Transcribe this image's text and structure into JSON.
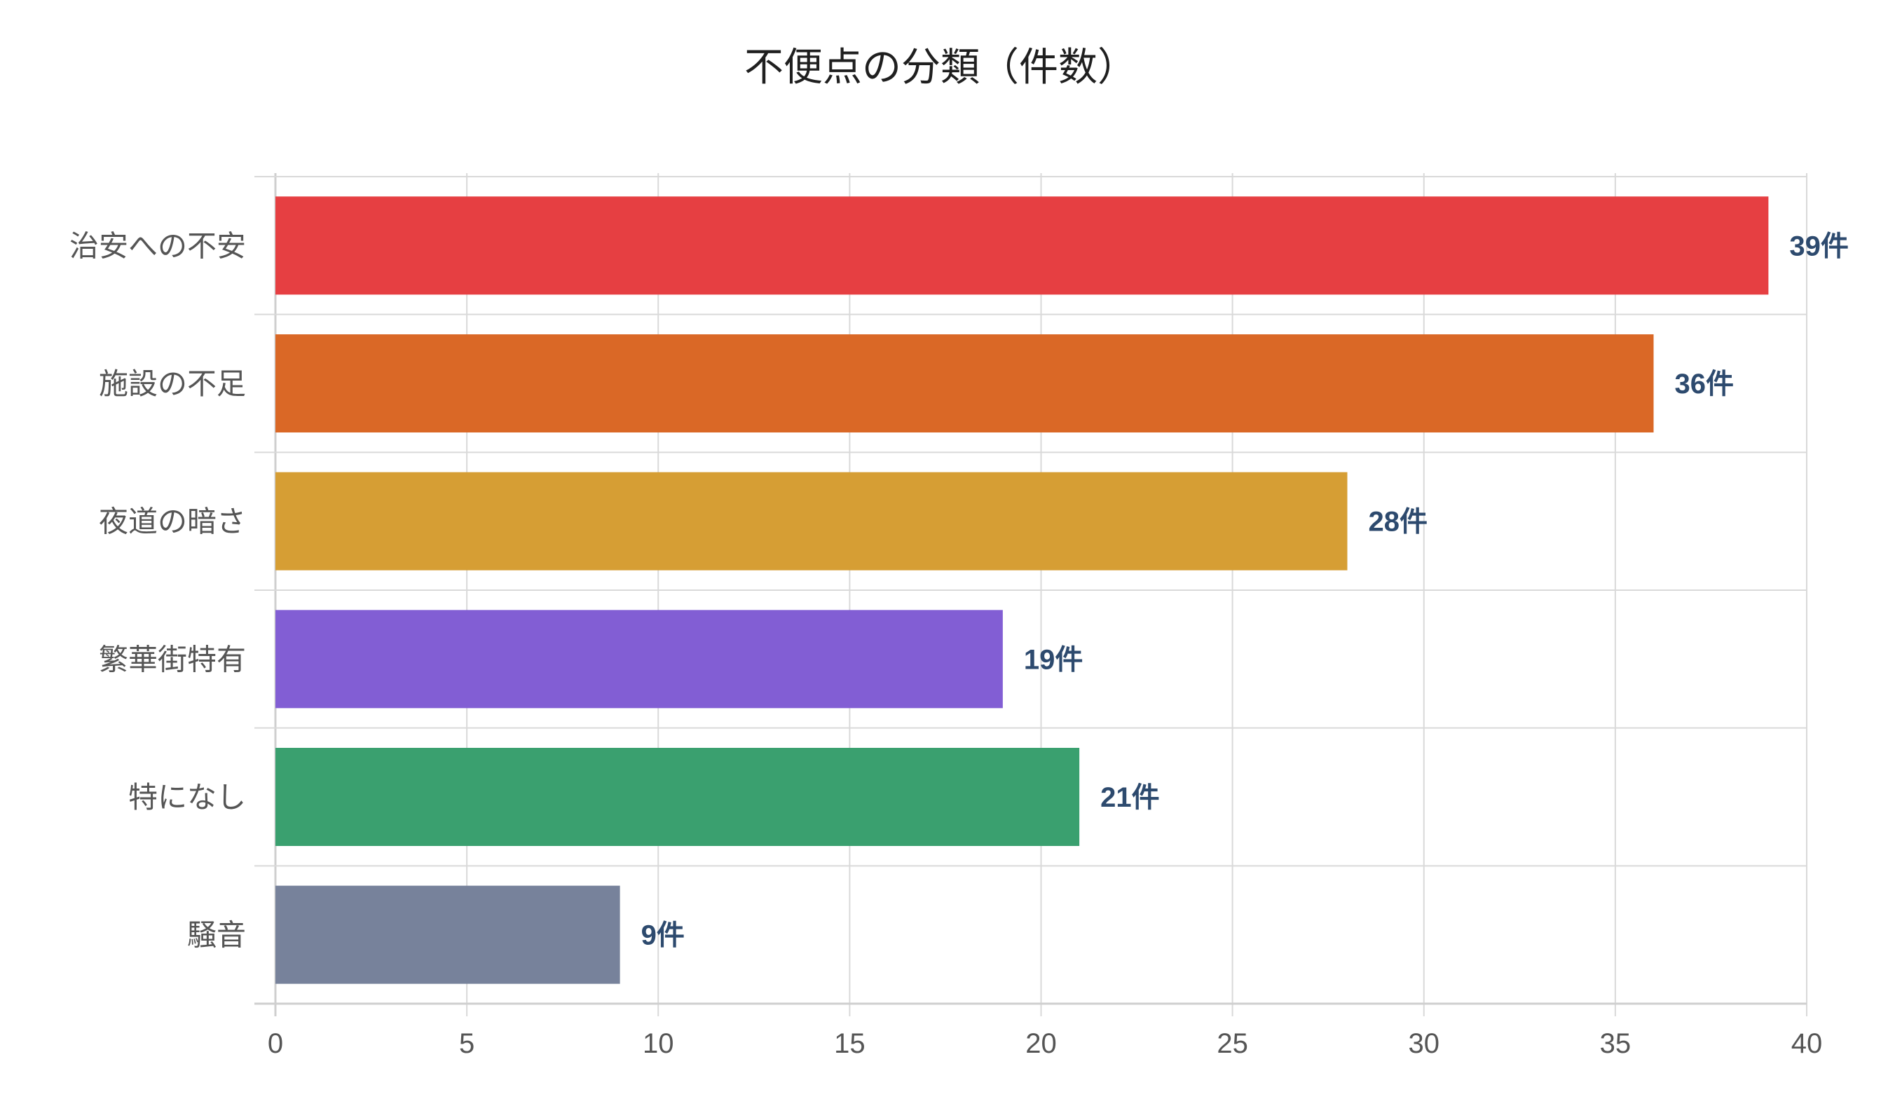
{
  "chart_data": {
    "type": "bar",
    "orientation": "horizontal",
    "title": "不便点の分類（件数）",
    "xlabel": "",
    "ylabel": "",
    "xlim": [
      0,
      40
    ],
    "x_ticks": [
      "0",
      "5",
      "10",
      "15",
      "20",
      "25",
      "30",
      "35",
      "40"
    ],
    "grid": true,
    "legend": "none",
    "categories": [
      "治安への不安",
      "施設の不足",
      "夜道の暗さ",
      "繁華街特有",
      "特になし",
      "騒音"
    ],
    "values": [
      39,
      36,
      28,
      19,
      21,
      9
    ],
    "data_labels": [
      "39件",
      "36件",
      "28件",
      "19件",
      "21件",
      "9件"
    ],
    "colors": [
      "#e63f42",
      "#da6826",
      "#d69e34",
      "#825ed4",
      "#3aa06f",
      "#77829b"
    ]
  }
}
